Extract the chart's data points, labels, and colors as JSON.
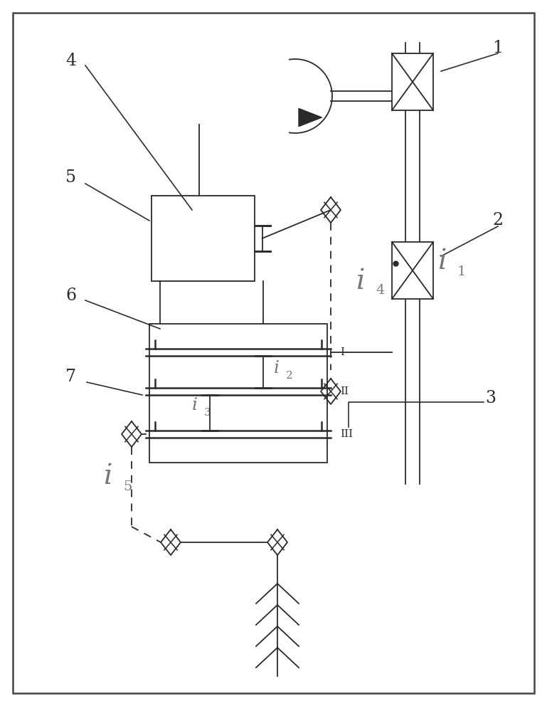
{
  "bg_color": "#ffffff",
  "line_color": "#2a2a2a",
  "fig_width": 7.69,
  "fig_height": 9.92,
  "dpi": 100,
  "xlim": [
    0,
    769
  ],
  "ylim": [
    0,
    992
  ]
}
